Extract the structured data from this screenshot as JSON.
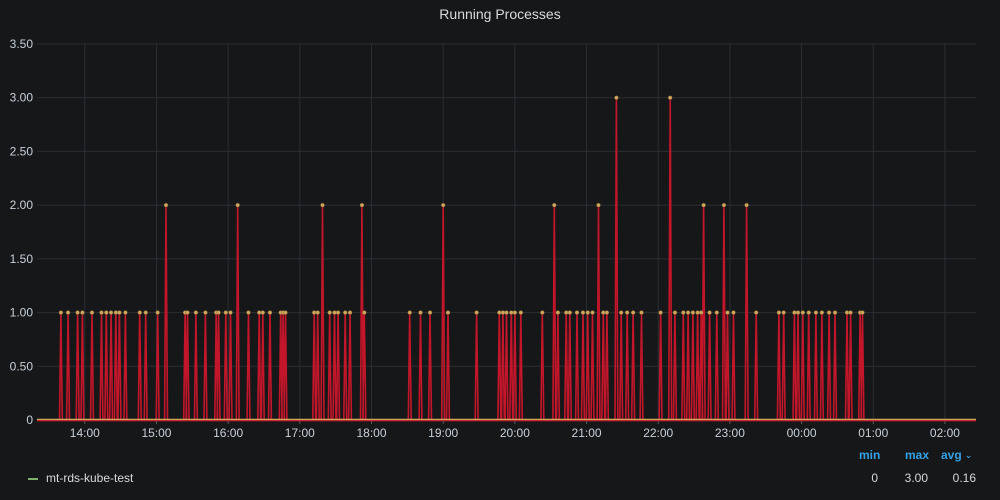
{
  "panel": {
    "title": "Running Processes"
  },
  "legend": {
    "headers": {
      "min": "min",
      "max": "max",
      "avg": "avg"
    },
    "series": [
      {
        "name": "mt-rds-kube-test",
        "min": "0",
        "max": "3.00",
        "avg": "0.16",
        "color": "#7eb26d"
      }
    ]
  },
  "colors": {
    "background": "#161719",
    "grid": "#2c2e32",
    "line": "#c4162a",
    "point": "#d2a75c",
    "legend_heading": "#33a2e5"
  },
  "chart_data": {
    "type": "line",
    "title": "Running Processes",
    "xlabel": "",
    "ylabel": "",
    "x_ticks": [
      "14:00",
      "15:00",
      "16:00",
      "17:00",
      "18:00",
      "19:00",
      "20:00",
      "21:00",
      "22:00",
      "23:00",
      "00:00",
      "01:00",
      "02:00"
    ],
    "y_ticks": [
      "0",
      "0.50",
      "1.00",
      "1.50",
      "2.00",
      "2.50",
      "3.00",
      "3.50"
    ],
    "ylim": [
      0,
      3.5
    ],
    "xlim_minutes_from_midnight": [
      800,
      1586
    ],
    "grid": true,
    "legend_position": "bottom",
    "series": [
      {
        "name": "mt-rds-kube-test",
        "baseline": 0,
        "spikes": [
          {
            "t": 820,
            "v": 1
          },
          {
            "t": 826,
            "v": 1
          },
          {
            "t": 834,
            "v": 1
          },
          {
            "t": 838,
            "v": 1
          },
          {
            "t": 846,
            "v": 1
          },
          {
            "t": 854,
            "v": 1
          },
          {
            "t": 858,
            "v": 1
          },
          {
            "t": 862,
            "v": 1
          },
          {
            "t": 866,
            "v": 1
          },
          {
            "t": 869,
            "v": 1
          },
          {
            "t": 874,
            "v": 1
          },
          {
            "t": 886,
            "v": 1
          },
          {
            "t": 891,
            "v": 1
          },
          {
            "t": 901,
            "v": 1
          },
          {
            "t": 908,
            "v": 2
          },
          {
            "t": 924,
            "v": 1
          },
          {
            "t": 926,
            "v": 1
          },
          {
            "t": 933,
            "v": 1
          },
          {
            "t": 941,
            "v": 1
          },
          {
            "t": 950,
            "v": 1
          },
          {
            "t": 952,
            "v": 1
          },
          {
            "t": 958,
            "v": 1
          },
          {
            "t": 962,
            "v": 1
          },
          {
            "t": 968,
            "v": 2
          },
          {
            "t": 977,
            "v": 1
          },
          {
            "t": 986,
            "v": 1
          },
          {
            "t": 989,
            "v": 1
          },
          {
            "t": 995,
            "v": 1
          },
          {
            "t": 1004,
            "v": 1
          },
          {
            "t": 1006,
            "v": 1
          },
          {
            "t": 1008,
            "v": 1
          },
          {
            "t": 1032,
            "v": 1
          },
          {
            "t": 1035,
            "v": 1
          },
          {
            "t": 1039,
            "v": 2
          },
          {
            "t": 1045,
            "v": 1
          },
          {
            "t": 1049,
            "v": 1
          },
          {
            "t": 1052,
            "v": 1
          },
          {
            "t": 1058,
            "v": 1
          },
          {
            "t": 1062,
            "v": 1
          },
          {
            "t": 1072,
            "v": 2
          },
          {
            "t": 1074,
            "v": 1
          },
          {
            "t": 1112,
            "v": 1
          },
          {
            "t": 1121,
            "v": 1
          },
          {
            "t": 1129,
            "v": 1
          },
          {
            "t": 1140,
            "v": 2
          },
          {
            "t": 1144,
            "v": 1
          },
          {
            "t": 1168,
            "v": 1
          },
          {
            "t": 1187,
            "v": 1
          },
          {
            "t": 1190,
            "v": 1
          },
          {
            "t": 1193,
            "v": 1
          },
          {
            "t": 1197,
            "v": 1
          },
          {
            "t": 1200,
            "v": 1
          },
          {
            "t": 1205,
            "v": 1
          },
          {
            "t": 1223,
            "v": 1
          },
          {
            "t": 1233,
            "v": 2
          },
          {
            "t": 1236,
            "v": 1
          },
          {
            "t": 1243,
            "v": 1
          },
          {
            "t": 1246,
            "v": 1
          },
          {
            "t": 1252,
            "v": 1
          },
          {
            "t": 1257,
            "v": 1
          },
          {
            "t": 1261,
            "v": 1
          },
          {
            "t": 1265,
            "v": 1
          },
          {
            "t": 1270,
            "v": 2
          },
          {
            "t": 1274,
            "v": 1
          },
          {
            "t": 1277,
            "v": 1
          },
          {
            "t": 1285,
            "v": 3
          },
          {
            "t": 1289,
            "v": 1
          },
          {
            "t": 1294,
            "v": 1
          },
          {
            "t": 1299,
            "v": 1
          },
          {
            "t": 1306,
            "v": 1
          },
          {
            "t": 1322,
            "v": 1
          },
          {
            "t": 1330,
            "v": 3
          },
          {
            "t": 1334,
            "v": 1
          },
          {
            "t": 1341,
            "v": 1
          },
          {
            "t": 1345,
            "v": 1
          },
          {
            "t": 1349,
            "v": 1
          },
          {
            "t": 1353,
            "v": 1
          },
          {
            "t": 1356,
            "v": 1
          },
          {
            "t": 1358,
            "v": 2
          },
          {
            "t": 1363,
            "v": 1
          },
          {
            "t": 1369,
            "v": 1
          },
          {
            "t": 1375,
            "v": 2
          },
          {
            "t": 1378,
            "v": 1
          },
          {
            "t": 1383,
            "v": 1
          },
          {
            "t": 1394,
            "v": 2
          },
          {
            "t": 1402,
            "v": 1
          },
          {
            "t": 1421,
            "v": 1
          },
          {
            "t": 1425,
            "v": 1
          },
          {
            "t": 1434,
            "v": 1
          },
          {
            "t": 1437,
            "v": 1
          },
          {
            "t": 1441,
            "v": 1
          },
          {
            "t": 1446,
            "v": 1
          },
          {
            "t": 1452,
            "v": 1
          },
          {
            "t": 1457,
            "v": 1
          },
          {
            "t": 1463,
            "v": 1
          },
          {
            "t": 1468,
            "v": 1
          },
          {
            "t": 1478,
            "v": 1
          },
          {
            "t": 1481,
            "v": 1
          },
          {
            "t": 1489,
            "v": 1
          },
          {
            "t": 1491,
            "v": 1
          }
        ]
      }
    ]
  }
}
